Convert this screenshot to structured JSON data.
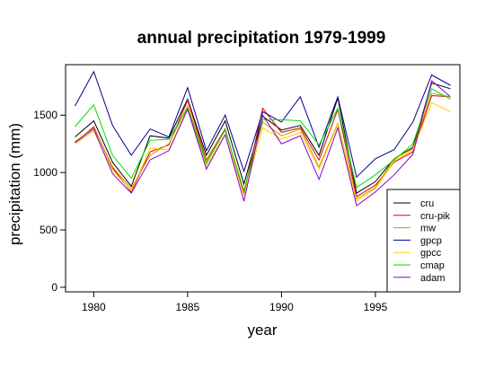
{
  "chart_data": {
    "type": "line",
    "title": "annual precipitation 1979-1999",
    "xlabel": "year",
    "ylabel": "precipitation (mm)",
    "xlim": [
      1978.5,
      1999.5
    ],
    "ylim": [
      -40,
      1940
    ],
    "xticks": [
      1980,
      1985,
      1990,
      1995
    ],
    "yticks": [
      0,
      500,
      1000,
      1500
    ],
    "grid": false,
    "legend_position": "bottom-right",
    "x": [
      1979,
      1980,
      1981,
      1982,
      1983,
      1984,
      1985,
      1986,
      1987,
      1988,
      1989,
      1990,
      1991,
      1992,
      1993,
      1994,
      1995,
      1996,
      1997,
      1998,
      1999
    ],
    "series": [
      {
        "name": "cru",
        "color": "#000000",
        "values": [
          1310,
          1450,
          1090,
          880,
          1320,
          1300,
          1640,
          1150,
          1450,
          900,
          1490,
          1370,
          1410,
          1150,
          1650,
          820,
          920,
          1120,
          1220,
          1780,
          1730
        ]
      },
      {
        "name": "cru-pik",
        "color": "#dd0000",
        "values": [
          1260,
          1400,
          1040,
          830,
          1180,
          1240,
          1630,
          1110,
          1380,
          820,
          1560,
          1350,
          1390,
          1110,
          1550,
          790,
          890,
          1090,
          1180,
          1670,
          1660
        ]
      },
      {
        "name": "mw",
        "color": "#cc9900",
        "values": [
          1270,
          1390,
          1050,
          860,
          1150,
          1250,
          1580,
          1100,
          1370,
          840,
          1440,
          1320,
          1380,
          1050,
          1430,
          770,
          870,
          1120,
          1210,
          1690,
          1660
        ]
      },
      {
        "name": "gpcp",
        "color": "#00008b",
        "values": [
          1580,
          1880,
          1410,
          1150,
          1380,
          1310,
          1740,
          1190,
          1500,
          1010,
          1530,
          1440,
          1660,
          1220,
          1660,
          960,
          1120,
          1200,
          1440,
          1850,
          1760
        ]
      },
      {
        "name": "gpcc",
        "color": "#ffcc00",
        "values": [
          1250,
          1360,
          1020,
          840,
          1210,
          1200,
          1560,
          1060,
          1330,
          800,
          1390,
          1290,
          1350,
          1030,
          1420,
          750,
          860,
          1100,
          1200,
          1610,
          1530
        ]
      },
      {
        "name": "cmap",
        "color": "#00dd00",
        "values": [
          1400,
          1590,
          1150,
          950,
          1280,
          1290,
          1560,
          1080,
          1370,
          840,
          1460,
          1460,
          1450,
          1240,
          1560,
          870,
          980,
          1110,
          1250,
          1730,
          1640
        ]
      },
      {
        "name": "adam",
        "color": "#8800cc",
        "values": [
          1260,
          1380,
          990,
          820,
          1110,
          1190,
          1550,
          1030,
          1330,
          750,
          1500,
          1250,
          1320,
          940,
          1390,
          710,
          830,
          980,
          1160,
          1800,
          1660
        ]
      }
    ]
  }
}
